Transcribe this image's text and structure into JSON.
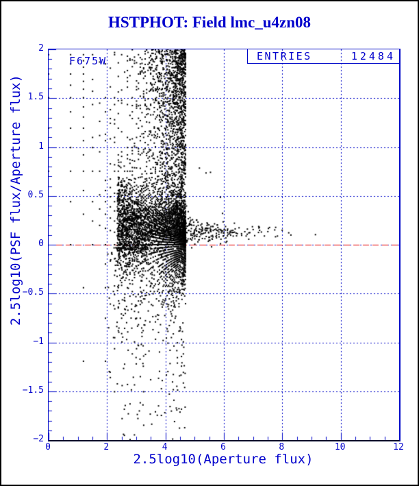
{
  "window": {
    "background": "#ffffff",
    "border_color": "#000000"
  },
  "chart_data": {
    "type": "scatter",
    "title": "HSTPHOT: Field lmc_u4zn08",
    "xlabel": "2.5log10(Aperture flux)",
    "ylabel": "2.5log10(PSF flux/Aperture flux)",
    "xlim": [
      0,
      12
    ],
    "ylim": [
      -2,
      2
    ],
    "x_major_ticks": [
      0,
      2,
      4,
      6,
      8,
      10,
      12
    ],
    "x_tick_labels": [
      "0",
      "2",
      "4",
      "6",
      "8",
      "10",
      "12"
    ],
    "x_minor_step": 0.5,
    "y_major_ticks": [
      2,
      1.5,
      1,
      0.5,
      0,
      -0.5,
      -1,
      -1.5,
      -2
    ],
    "y_tick_labels": [
      "2",
      "1.5",
      "1",
      "0.5",
      "0",
      "−0.5",
      "−1",
      "−1.5",
      "−2"
    ],
    "y_minor_step": 0.1,
    "grid": {
      "x_lines": [
        2,
        4,
        6,
        8,
        10
      ],
      "y_lines": [
        1.5,
        1,
        0.5,
        0,
        -0.5,
        -1,
        -1.5
      ],
      "color": "#0008c8",
      "dash": [
        2,
        3
      ]
    },
    "zero_line": {
      "y": 0,
      "color": "#e60000",
      "dash": [
        9,
        5
      ]
    },
    "annotations": {
      "filter": "F675W",
      "entries_label": "ENTRIES",
      "entries_value": "12484"
    },
    "entries": 12484,
    "marker": {
      "size": 2,
      "color": "#000000"
    },
    "text_color": "#0000cc",
    "point_generation": {
      "seed": 12484,
      "description": "PSF vs aperture flux ratio: quantization fan y=2.5log10(1+k/n) at x=2.5log10(n) for low fluxes, dense band slightly above y=0 for bright stars tailing to x~9.4, sparse negative outliers below the unity line",
      "fan": {
        "n_max": 75,
        "sigma_scale": 1.5,
        "sigma_pow": -0.42,
        "sigma_min": 0.245,
        "floor": 0.1,
        "neg_factor": 0.72
      },
      "band": {
        "count": 1800,
        "x0": 2.35,
        "decay": 1.15,
        "x_max": 9.45,
        "mu": [
          0.12,
          0.1,
          1.8
        ],
        "sigma": [
          0.035,
          0.24,
          1.3
        ]
      },
      "below": {
        "count": 300,
        "x_mean": 2.9,
        "x_sd": 0.5,
        "depth_pow": 2.8
      },
      "high_outliers": {
        "count": 14,
        "x_range": [
          3.2,
          6.2
        ],
        "y_range": [
          0.3,
          0.85
        ]
      }
    }
  }
}
